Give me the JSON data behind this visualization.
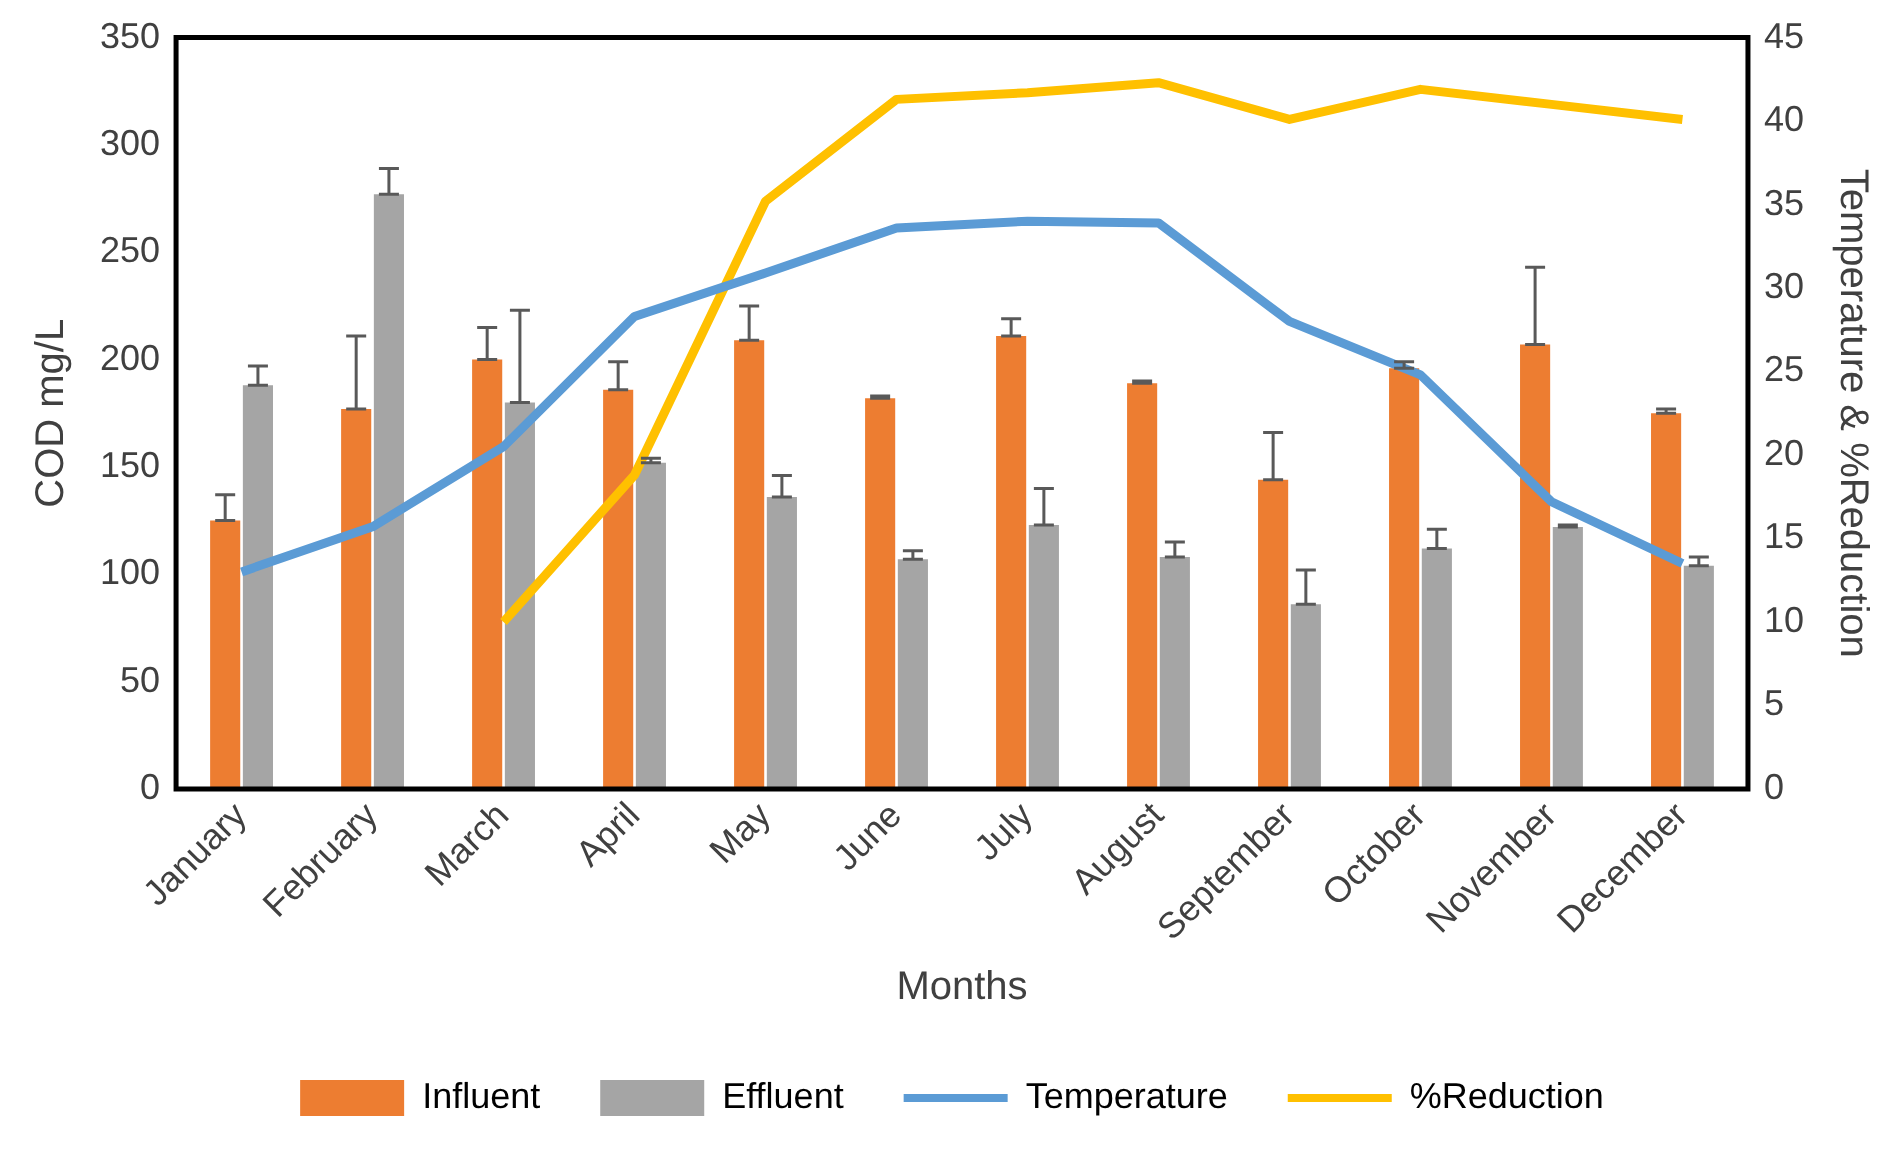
{
  "chart_data": {
    "type": "bar",
    "xlabel": "Months",
    "ylabel": "COD mg/L",
    "y2label": "Temperature & %Reduction",
    "categories": [
      "January",
      "February",
      "March",
      "April",
      "May",
      "June",
      "July",
      "August",
      "September",
      "October",
      "November",
      "December"
    ],
    "ylim": [
      0,
      350
    ],
    "yticks": [
      0,
      50,
      100,
      150,
      200,
      250,
      300,
      350
    ],
    "y2lim": [
      0,
      45
    ],
    "y2ticks": [
      0,
      5,
      10,
      15,
      20,
      25,
      30,
      35,
      40,
      45
    ],
    "grid": false,
    "legend": "bottom",
    "marker": "none",
    "series": [
      {
        "name": "Influent",
        "color": "#ed7d31",
        "values": [
          125,
          177,
          200,
          186,
          209,
          182,
          211,
          189,
          144,
          196,
          207,
          175
        ],
        "errors": [
          [
            125,
            137
          ],
          [
            177,
            211
          ],
          [
            200,
            215
          ],
          [
            186,
            199
          ],
          [
            209,
            225
          ],
          [
            182,
            183
          ],
          [
            211,
            219
          ],
          [
            189,
            190
          ],
          [
            144,
            166
          ],
          [
            196,
            199
          ],
          [
            207,
            243
          ],
          [
            175,
            177
          ]
        ]
      },
      {
        "name": "Effluent",
        "color": "#a5a5a5",
        "values": [
          188,
          277,
          180,
          152,
          136,
          107,
          123,
          108,
          86,
          112,
          122,
          104
        ],
        "errors": [
          [
            188,
            197
          ],
          [
            277,
            289
          ],
          [
            180,
            223
          ],
          [
            152,
            154
          ],
          [
            136,
            146
          ],
          [
            107,
            111
          ],
          [
            123,
            140
          ],
          [
            108,
            115
          ],
          [
            86,
            102
          ],
          [
            112,
            121
          ],
          [
            122,
            123
          ],
          [
            104,
            108
          ]
        ]
      },
      {
        "name": "Temperature",
        "type": "line",
        "axis": "y2",
        "color": "#5b9bd5",
        "values": [
          13,
          15.7,
          20.5,
          28.3,
          30.9,
          33.6,
          34,
          33.9,
          28,
          24.8,
          17.2,
          13.5
        ]
      },
      {
        "name": "%Reduction",
        "type": "line",
        "axis": "y2",
        "color": "#ffc000",
        "values": [
          null,
          null,
          10,
          18.8,
          35.2,
          41.3,
          41.7,
          42.3,
          40.1,
          41.9,
          41,
          40.1
        ]
      }
    ]
  }
}
